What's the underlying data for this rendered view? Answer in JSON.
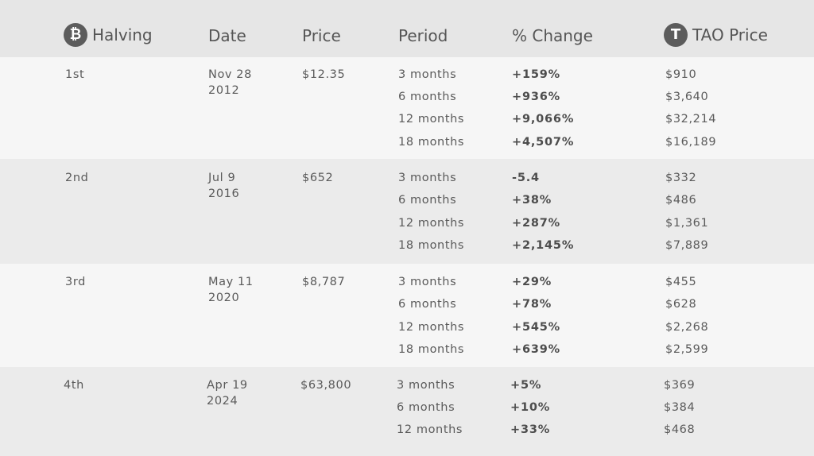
{
  "header": {
    "halving": "Halving",
    "date": "Date",
    "price": "Price",
    "period": "Period",
    "change": "% Change",
    "tao_price": "TAO Price",
    "btc_icon_glyph": "₿",
    "tao_icon_glyph": "T"
  },
  "colors": {
    "header_bg": "#e6e6e6",
    "row_light": "#f6f6f6",
    "row_dark": "#ebebeb",
    "icon_bg": "#5c5c5c",
    "text": "#555555"
  },
  "halvings": [
    {
      "label": "1st",
      "date_line1": "Nov 28",
      "date_line2": "2012",
      "price": "$12.35",
      "rows": [
        {
          "period": "3 months",
          "change": "+159%",
          "tao": "$910"
        },
        {
          "period": "6 months",
          "change": "+936%",
          "tao": "$3,640"
        },
        {
          "period": "12 months",
          "change": "+9,066%",
          "tao": "$32,214"
        },
        {
          "period": "18 months",
          "change": "+4,507%",
          "tao": "$16,189"
        }
      ]
    },
    {
      "label": "2nd",
      "date_line1": "Jul 9",
      "date_line2": "2016",
      "price": "$652",
      "rows": [
        {
          "period": "3 months",
          "change": "-5.4",
          "tao": "$332"
        },
        {
          "period": "6 months",
          "change": "+38%",
          "tao": "$486"
        },
        {
          "period": "12 months",
          "change": "+287%",
          "tao": "$1,361"
        },
        {
          "period": "18 months",
          "change": "+2,145%",
          "tao": "$7,889"
        }
      ]
    },
    {
      "label": "3rd",
      "date_line1": "May 11",
      "date_line2": "2020",
      "price": "$8,787",
      "rows": [
        {
          "period": "3 months",
          "change": "+29%",
          "tao": "$455"
        },
        {
          "period": "6 months",
          "change": "+78%",
          "tao": "$628"
        },
        {
          "period": "12 months",
          "change": "+545%",
          "tao": "$2,268"
        },
        {
          "period": "18 months",
          "change": "+639%",
          "tao": "$2,599"
        }
      ]
    },
    {
      "label": "4th",
      "date_line1": "Apr 19",
      "date_line2": "2024",
      "price": "$63,800",
      "rows": [
        {
          "period": "3 months",
          "change": "+5%",
          "tao": "$369"
        },
        {
          "period": "6 months",
          "change": "+10%",
          "tao": "$384"
        },
        {
          "period": "12 months",
          "change": "+33%",
          "tao": "$468"
        }
      ]
    }
  ]
}
